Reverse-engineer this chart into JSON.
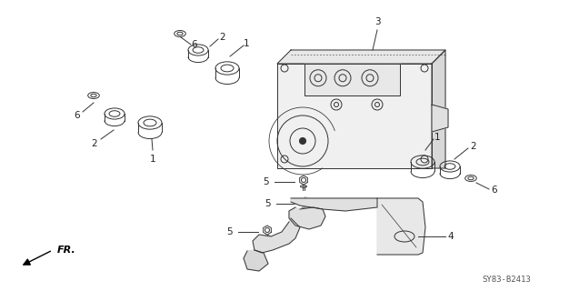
{
  "bg_color": "#ffffff",
  "line_color": "#333333",
  "part_label_color": "#222222",
  "diagram_id": "SY83-B2413",
  "fr_label": "FR.",
  "fig_width": 6.37,
  "fig_height": 3.2,
  "dpi": 100
}
